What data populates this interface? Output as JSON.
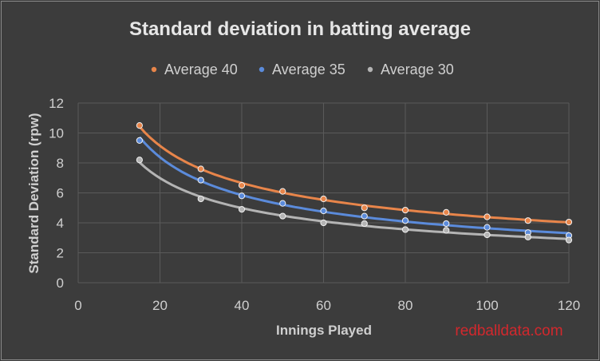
{
  "chart_data": {
    "type": "scatter",
    "title": "Standard deviation in batting average",
    "xlabel": "Innings Played",
    "ylabel": "Standard Deviation (rpw)",
    "xlim": [
      0,
      120
    ],
    "ylim": [
      0,
      12
    ],
    "x_ticks": [
      "0",
      "20",
      "40",
      "60",
      "80",
      "100",
      "120"
    ],
    "y_ticks": [
      "0",
      "2",
      "4",
      "6",
      "8",
      "10",
      "12"
    ],
    "grid": true,
    "legend_position": "top",
    "trendlines": true,
    "series": [
      {
        "name": "Average 40",
        "color": "#e8854a",
        "x": [
          15,
          30,
          40,
          50,
          60,
          70,
          80,
          90,
          100,
          110,
          120
        ],
        "y": [
          10.5,
          7.6,
          6.5,
          6.1,
          5.6,
          5.0,
          4.85,
          4.7,
          4.4,
          4.15,
          4.05
        ]
      },
      {
        "name": "Average 35",
        "color": "#5b8bdb",
        "x": [
          15,
          30,
          40,
          50,
          60,
          70,
          80,
          90,
          100,
          110,
          120
        ],
        "y": [
          9.5,
          6.85,
          5.8,
          5.3,
          4.8,
          4.45,
          4.15,
          3.95,
          3.7,
          3.35,
          3.15
        ]
      },
      {
        "name": "Average 30",
        "color": "#b4b4b4",
        "x": [
          15,
          30,
          40,
          50,
          60,
          70,
          80,
          90,
          100,
          110,
          120
        ],
        "y": [
          8.2,
          5.6,
          4.9,
          4.45,
          4.0,
          3.95,
          3.55,
          3.5,
          3.2,
          3.05,
          2.85
        ]
      }
    ]
  },
  "watermark": "redballdata.com"
}
